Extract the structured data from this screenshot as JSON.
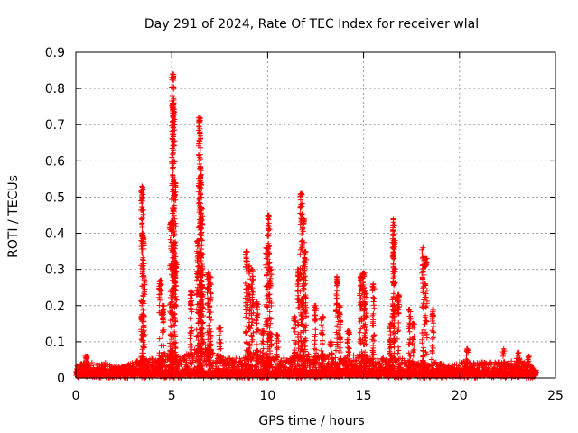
{
  "chart_data": {
    "type": "scatter",
    "title": "Day 291 of 2024, Rate Of TEC Index for receiver wlal",
    "xlabel": "GPS time / hours",
    "ylabel": "ROTI / TECUs",
    "xlim": [
      0,
      25
    ],
    "ylim": [
      0,
      0.9
    ],
    "xticks": [
      0,
      5,
      10,
      15,
      20,
      25
    ],
    "xtick_labels": [
      "0",
      "5",
      "10",
      "15",
      "20",
      "25"
    ],
    "yticks": [
      0,
      0.1,
      0.2,
      0.3,
      0.4,
      0.5,
      0.6,
      0.7,
      0.8,
      0.9
    ],
    "ytick_labels": [
      "0",
      "0.1",
      "0.2",
      "0.3",
      "0.4",
      "0.5",
      "0.6",
      "0.7",
      "0.8",
      "0.9"
    ],
    "grid": true,
    "marker": "plus",
    "color": "#ff0000",
    "series": [
      {
        "name": "ROTI",
        "baseline": [
          [
            0.0,
            0.03
          ],
          [
            0.5,
            0.04
          ],
          [
            1.0,
            0.04
          ],
          [
            1.5,
            0.04
          ],
          [
            2.0,
            0.03
          ],
          [
            2.5,
            0.03
          ],
          [
            3.0,
            0.04
          ],
          [
            3.5,
            0.05
          ],
          [
            4.0,
            0.05
          ],
          [
            4.5,
            0.06
          ],
          [
            5.0,
            0.07
          ],
          [
            5.5,
            0.05
          ],
          [
            6.0,
            0.07
          ],
          [
            6.5,
            0.08
          ],
          [
            7.0,
            0.07
          ],
          [
            7.5,
            0.06
          ],
          [
            8.0,
            0.05
          ],
          [
            8.5,
            0.05
          ],
          [
            9.0,
            0.06
          ],
          [
            9.5,
            0.07
          ],
          [
            10.0,
            0.06
          ],
          [
            10.5,
            0.05
          ],
          [
            11.0,
            0.05
          ],
          [
            11.5,
            0.06
          ],
          [
            12.0,
            0.06
          ],
          [
            12.5,
            0.06
          ],
          [
            13.0,
            0.06
          ],
          [
            13.5,
            0.06
          ],
          [
            14.0,
            0.05
          ],
          [
            14.5,
            0.06
          ],
          [
            15.0,
            0.06
          ],
          [
            15.5,
            0.05
          ],
          [
            16.0,
            0.05
          ],
          [
            16.5,
            0.05
          ],
          [
            17.0,
            0.05
          ],
          [
            17.5,
            0.04
          ],
          [
            18.0,
            0.04
          ],
          [
            18.5,
            0.04
          ],
          [
            19.0,
            0.04
          ],
          [
            19.5,
            0.03
          ],
          [
            20.0,
            0.04
          ],
          [
            20.5,
            0.04
          ],
          [
            21.0,
            0.04
          ],
          [
            21.5,
            0.04
          ],
          [
            22.0,
            0.04
          ],
          [
            22.5,
            0.04
          ],
          [
            23.0,
            0.05
          ],
          [
            23.5,
            0.04
          ],
          [
            24.0,
            0.02
          ]
        ],
        "spikes": [
          [
            0.55,
            0.06
          ],
          [
            3.45,
            0.53
          ],
          [
            3.5,
            0.4
          ],
          [
            3.55,
            0.28
          ],
          [
            4.4,
            0.27
          ],
          [
            4.55,
            0.2
          ],
          [
            4.95,
            0.43
          ],
          [
            5.05,
            0.84
          ],
          [
            5.1,
            0.76
          ],
          [
            5.15,
            0.54
          ],
          [
            5.2,
            0.32
          ],
          [
            6.0,
            0.24
          ],
          [
            6.35,
            0.38
          ],
          [
            6.45,
            0.72
          ],
          [
            6.5,
            0.58
          ],
          [
            6.55,
            0.47
          ],
          [
            6.6,
            0.3
          ],
          [
            6.9,
            0.29
          ],
          [
            7.0,
            0.28
          ],
          [
            7.5,
            0.14
          ],
          [
            8.9,
            0.35
          ],
          [
            9.05,
            0.31
          ],
          [
            9.2,
            0.3
          ],
          [
            9.45,
            0.21
          ],
          [
            9.75,
            0.13
          ],
          [
            9.95,
            0.36
          ],
          [
            10.05,
            0.45
          ],
          [
            10.15,
            0.3
          ],
          [
            10.5,
            0.12
          ],
          [
            11.4,
            0.17
          ],
          [
            11.6,
            0.3
          ],
          [
            11.75,
            0.51
          ],
          [
            11.85,
            0.44
          ],
          [
            11.95,
            0.35
          ],
          [
            12.5,
            0.2
          ],
          [
            12.85,
            0.17
          ],
          [
            13.3,
            0.1
          ],
          [
            13.6,
            0.28
          ],
          [
            13.75,
            0.2
          ],
          [
            14.2,
            0.13
          ],
          [
            14.85,
            0.28
          ],
          [
            15.0,
            0.29
          ],
          [
            15.1,
            0.24
          ],
          [
            15.5,
            0.26
          ],
          [
            16.4,
            0.15
          ],
          [
            16.55,
            0.44
          ],
          [
            16.6,
            0.38
          ],
          [
            16.8,
            0.23
          ],
          [
            17.4,
            0.19
          ],
          [
            17.6,
            0.15
          ],
          [
            18.1,
            0.36
          ],
          [
            18.25,
            0.33
          ],
          [
            18.6,
            0.19
          ],
          [
            20.4,
            0.08
          ],
          [
            22.3,
            0.08
          ],
          [
            23.1,
            0.07
          ],
          [
            23.6,
            0.06
          ]
        ]
      }
    ]
  }
}
